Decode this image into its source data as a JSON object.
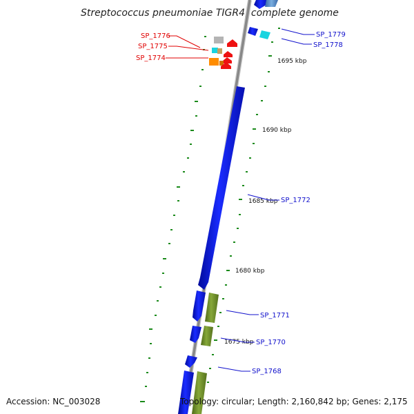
{
  "title": "Streptococcus pneumoniae TIGR4, complete genome",
  "footer": {
    "accession": "Accession: NC_003028",
    "topology": "Topology: circular; Length: 2,160,842 bp; Genes: 2,175"
  },
  "scale_labels": [
    "1695 kbp",
    "1690 kbp",
    "1685 kbp",
    "1680 kbp",
    "1675 kbp"
  ],
  "gene_labels": {
    "left": [
      "SP_1776",
      "SP_1775",
      "SP_1774"
    ],
    "right": [
      "SP_1779",
      "SP_1778",
      "SP_1772",
      "SP_1771",
      "SP_1770",
      "SP_1768"
    ]
  },
  "colors": {
    "cds_blue": "#0a14f0",
    "cds_green": "#6f8f2a",
    "cds_red": "#ee1111",
    "cds_cyan": "#19d4e0",
    "cds_orange": "#ff8c00",
    "cds_grey": "#b4b4b4",
    "cds_steel": "#5b8fc8",
    "backbone": "#888888",
    "tick_green": "#1a8a1a",
    "label_red": "#e00000",
    "label_blue": "#1010cc"
  }
}
